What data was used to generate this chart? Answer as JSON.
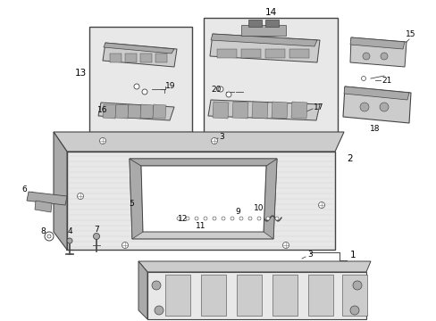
{
  "bg_color": "#ffffff",
  "fig_width": 4.89,
  "fig_height": 3.6,
  "dpi": 100,
  "gray1": "#444444",
  "gray2": "#777777",
  "gray3": "#aaaaaa",
  "gray4": "#cccccc",
  "gray5": "#e8e8e8",
  "label_fs": 7.5,
  "small_fs": 6.5
}
